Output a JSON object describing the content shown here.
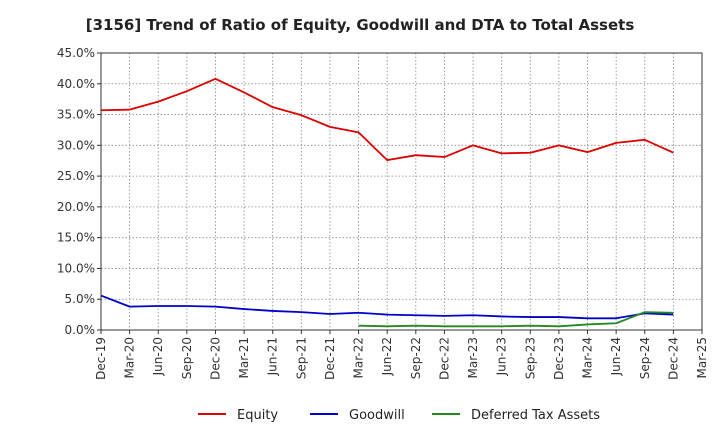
{
  "chart_data": {
    "type": "line",
    "title": "[3156]  Trend of Ratio of Equity, Goodwill and DTA to Total Assets",
    "xlabel": "",
    "ylabel": "",
    "ylim": [
      0,
      45
    ],
    "yticks": [
      0,
      5,
      10,
      15,
      20,
      25,
      30,
      35,
      40,
      45
    ],
    "ytick_labels": [
      "0.0%",
      "5.0%",
      "10.0%",
      "15.0%",
      "20.0%",
      "25.0%",
      "30.0%",
      "35.0%",
      "40.0%",
      "45.0%"
    ],
    "x_tick_labels": [
      "Dec-19",
      "Mar-20",
      "Jun-20",
      "Sep-20",
      "Dec-20",
      "Mar-21",
      "Jun-21",
      "Sep-21",
      "Dec-21",
      "Mar-22",
      "Jun-22",
      "Sep-22",
      "Dec-22",
      "Mar-23",
      "Jun-23",
      "Sep-23",
      "Dec-23",
      "Mar-24",
      "Jun-24",
      "Sep-24",
      "Dec-24",
      "Mar-25"
    ],
    "grid": true,
    "legend_position": "bottom",
    "series": [
      {
        "name": "Equity",
        "color": "#dd0000",
        "values": [
          35.7,
          35.8,
          37.1,
          38.8,
          40.8,
          38.6,
          36.2,
          34.9,
          33.0,
          32.1,
          27.6,
          28.4,
          28.1,
          30.0,
          28.7,
          28.8,
          30.0,
          28.9,
          30.4,
          30.9,
          28.8,
          null
        ]
      },
      {
        "name": "Goodwill",
        "color": "#0000cc",
        "values": [
          5.6,
          3.8,
          3.9,
          3.9,
          3.8,
          3.4,
          3.1,
          2.9,
          2.6,
          2.8,
          2.5,
          2.4,
          2.3,
          2.4,
          2.2,
          2.1,
          2.1,
          1.9,
          1.9,
          2.7,
          2.5,
          null
        ]
      },
      {
        "name": "Deferred Tax Assets",
        "color": "#228822",
        "values": [
          null,
          null,
          null,
          null,
          null,
          null,
          null,
          null,
          null,
          0.7,
          0.6,
          0.7,
          0.6,
          0.6,
          0.6,
          0.7,
          0.6,
          0.9,
          1.1,
          2.9,
          2.8,
          null
        ]
      }
    ]
  }
}
